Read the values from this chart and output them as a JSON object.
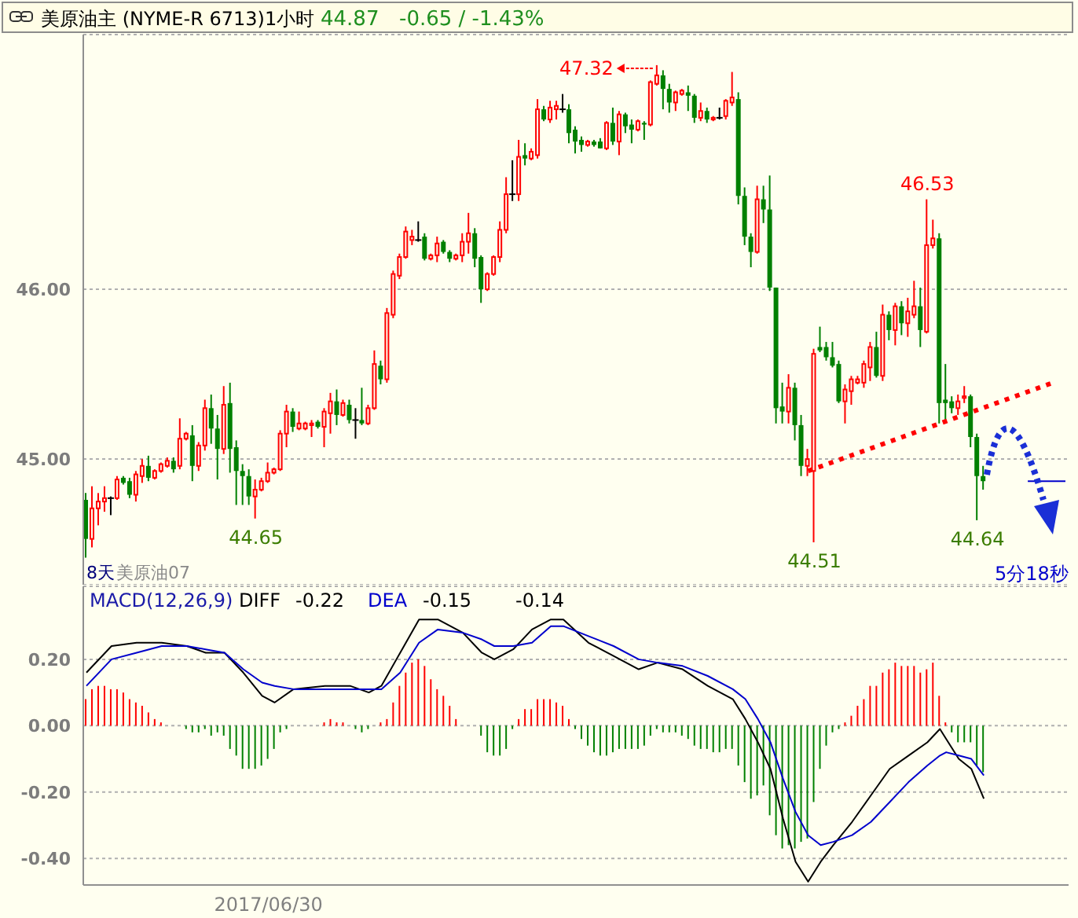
{
  "chart_data": [
    {
      "type": "candlestick",
      "title": "美原油主 (NYME-R 6713)1小时",
      "tick_labels": "y",
      "grid": "y",
      "ylim": [
        44.26,
        47.5
      ],
      "yticks": [
        {
          "value": 45,
          "label": "45.00"
        },
        {
          "value": 46,
          "label": "46.00"
        }
      ],
      "categories": [
        null,
        null,
        null,
        null,
        null,
        null,
        null,
        null,
        null,
        null,
        null,
        null,
        null,
        null,
        null,
        null,
        null,
        null,
        null,
        null,
        null,
        null,
        null,
        null,
        null,
        null,
        null,
        null,
        null,
        null,
        null,
        null,
        null,
        null,
        null,
        null,
        null,
        null,
        null,
        null,
        null,
        null,
        null,
        null,
        null,
        null,
        null,
        null,
        null,
        null,
        null,
        null,
        null,
        null,
        null,
        null,
        null,
        null,
        null,
        null,
        null,
        null,
        null,
        null,
        null,
        null,
        null,
        null,
        null,
        null,
        null,
        null,
        null,
        null,
        null,
        null,
        null,
        null,
        null,
        null,
        null,
        null,
        null,
        null,
        null,
        null,
        null,
        null,
        null,
        null,
        null,
        null,
        null,
        null,
        null,
        null,
        null,
        null,
        null,
        null,
        null,
        null,
        null,
        null,
        null,
        null,
        null,
        null,
        null,
        null,
        null,
        null,
        null,
        null,
        null,
        null,
        null,
        null,
        null,
        null,
        null,
        null,
        null,
        null,
        null,
        null,
        null,
        null,
        null,
        null,
        null,
        null,
        null,
        null,
        null,
        null,
        null,
        null,
        null,
        null,
        null,
        null,
        null,
        null,
        null,
        null,
        null,
        null,
        null,
        null,
        null,
        null,
        null,
        null,
        null,
        null,
        null
      ],
      "ohlc": [
        [
          44.76,
          44.8,
          44.42,
          44.53
        ],
        [
          44.53,
          44.84,
          44.48,
          44.71
        ],
        [
          44.71,
          44.8,
          44.61,
          44.75
        ],
        [
          44.75,
          44.84,
          44.69,
          44.77
        ],
        [
          44.77,
          44.78,
          44.67,
          44.77
        ],
        [
          44.77,
          44.9,
          44.76,
          44.88
        ],
        [
          44.89,
          44.9,
          44.85,
          44.86
        ],
        [
          44.87,
          44.89,
          44.77,
          44.79
        ],
        [
          44.79,
          44.93,
          44.75,
          44.91
        ],
        [
          44.9,
          45.0,
          44.86,
          44.96
        ],
        [
          44.96,
          45.02,
          44.87,
          44.89
        ],
        [
          44.89,
          44.94,
          44.88,
          44.93
        ],
        [
          44.93,
          44.98,
          44.92,
          44.97
        ],
        [
          44.96,
          45.01,
          44.95,
          44.99
        ],
        [
          44.99,
          45.01,
          44.92,
          44.94
        ],
        [
          44.96,
          45.24,
          44.94,
          45.12
        ],
        [
          45.12,
          45.16,
          45.11,
          45.15
        ],
        [
          45.14,
          45.2,
          44.87,
          44.96
        ],
        [
          44.96,
          45.1,
          44.93,
          45.08
        ],
        [
          45.08,
          45.35,
          45.05,
          45.3
        ],
        [
          45.3,
          45.38,
          45.09,
          45.18
        ],
        [
          45.18,
          45.26,
          44.88,
          45.06
        ],
        [
          45.06,
          45.43,
          45.03,
          45.32
        ],
        [
          45.33,
          45.45,
          44.92,
          45.06
        ],
        [
          45.07,
          45.11,
          44.73,
          44.93
        ],
        [
          44.93,
          44.97,
          44.73,
          44.9
        ],
        [
          44.9,
          44.94,
          44.73,
          44.78
        ],
        [
          44.78,
          44.88,
          44.65,
          44.82
        ],
        [
          44.82,
          44.89,
          44.81,
          44.87
        ],
        [
          44.87,
          44.98,
          44.86,
          44.92
        ],
        [
          44.92,
          44.95,
          44.91,
          44.94
        ],
        [
          44.94,
          45.17,
          44.93,
          45.15
        ],
        [
          45.15,
          45.32,
          45.07,
          45.28
        ],
        [
          45.28,
          45.3,
          45.16,
          45.19
        ],
        [
          45.18,
          45.28,
          45.17,
          45.21
        ],
        [
          45.18,
          45.22,
          45.17,
          45.21
        ],
        [
          45.2,
          45.23,
          45.13,
          45.21
        ],
        [
          45.22,
          45.23,
          45.18,
          45.19
        ],
        [
          45.19,
          45.3,
          45.07,
          45.28
        ],
        [
          45.27,
          45.39,
          45.15,
          45.34
        ],
        [
          45.34,
          45.41,
          45.2,
          45.26
        ],
        [
          45.26,
          45.35,
          45.25,
          45.33
        ],
        [
          45.32,
          45.35,
          45.21,
          45.23
        ],
        [
          45.23,
          45.3,
          45.12,
          45.23
        ],
        [
          45.23,
          45.42,
          45.2,
          45.21
        ],
        [
          45.21,
          45.32,
          45.2,
          45.3
        ],
        [
          45.3,
          45.64,
          45.29,
          45.56
        ],
        [
          45.55,
          45.58,
          45.44,
          45.47
        ],
        [
          45.47,
          45.89,
          45.45,
          45.86
        ],
        [
          45.85,
          46.11,
          45.83,
          46.09
        ],
        [
          46.08,
          46.21,
          46.06,
          46.19
        ],
        [
          46.19,
          46.37,
          46.18,
          46.34
        ],
        [
          46.29,
          46.35,
          46.26,
          46.31
        ],
        [
          46.29,
          46.4,
          46.28,
          46.29
        ],
        [
          46.31,
          46.33,
          46.17,
          46.18
        ],
        [
          46.18,
          46.21,
          46.17,
          46.2
        ],
        [
          46.2,
          46.31,
          46.16,
          46.27
        ],
        [
          46.28,
          46.29,
          46.21,
          46.22
        ],
        [
          46.22,
          46.23,
          46.16,
          46.18
        ],
        [
          46.18,
          46.21,
          46.17,
          46.2
        ],
        [
          46.2,
          46.33,
          46.16,
          46.28
        ],
        [
          46.28,
          46.45,
          46.21,
          46.33
        ],
        [
          46.33,
          46.36,
          46.13,
          46.18
        ],
        [
          46.19,
          46.2,
          45.92,
          46.0
        ],
        [
          46.0,
          46.1,
          45.99,
          46.09
        ],
        [
          46.09,
          46.2,
          46.08,
          46.19
        ],
        [
          46.19,
          46.4,
          46.16,
          46.35
        ],
        [
          46.35,
          46.66,
          46.33,
          46.56
        ],
        [
          46.56,
          46.76,
          46.52,
          46.56
        ],
        [
          46.56,
          46.88,
          46.52,
          46.78
        ],
        [
          46.79,
          46.86,
          46.73,
          46.77
        ],
        [
          46.77,
          46.83,
          46.76,
          46.81
        ],
        [
          46.79,
          47.12,
          46.77,
          47.06
        ],
        [
          47.06,
          47.08,
          46.99,
          47.0
        ],
        [
          47.0,
          47.11,
          46.98,
          47.07
        ],
        [
          47.06,
          47.11,
          47.0,
          47.08
        ],
        [
          47.06,
          47.15,
          47.04,
          47.06
        ],
        [
          47.06,
          47.09,
          46.86,
          46.92
        ],
        [
          46.94,
          46.96,
          46.8,
          46.87
        ],
        [
          46.88,
          46.9,
          46.81,
          46.85
        ],
        [
          46.85,
          46.88,
          46.84,
          46.87
        ],
        [
          46.87,
          46.88,
          46.84,
          46.85
        ],
        [
          46.87,
          46.89,
          46.83,
          46.83
        ],
        [
          46.83,
          46.99,
          46.82,
          46.98
        ],
        [
          46.98,
          47.07,
          46.85,
          46.87
        ],
        [
          46.87,
          47.05,
          46.79,
          47.03
        ],
        [
          47.03,
          47.04,
          46.92,
          46.96
        ],
        [
          46.97,
          47.0,
          46.86,
          46.94
        ],
        [
          46.94,
          47.0,
          46.93,
          46.99
        ],
        [
          46.98,
          46.99,
          46.88,
          46.97
        ],
        [
          46.97,
          47.23,
          46.96,
          47.22
        ],
        [
          47.21,
          47.32,
          47.2,
          47.26
        ],
        [
          47.26,
          47.29,
          47.06,
          47.18
        ],
        [
          47.18,
          47.21,
          47.04,
          47.1
        ],
        [
          47.1,
          47.17,
          47.05,
          47.16
        ],
        [
          47.15,
          47.18,
          47.14,
          47.17
        ],
        [
          47.16,
          47.2,
          47.05,
          47.14
        ],
        [
          47.14,
          47.15,
          46.98,
          47.01
        ],
        [
          47.01,
          47.1,
          46.99,
          47.05
        ],
        [
          47.05,
          47.07,
          46.98,
          47.0
        ],
        [
          47.0,
          47.02,
          46.99,
          47.01
        ],
        [
          47.01,
          47.07,
          47.0,
          47.01
        ],
        [
          47.02,
          47.12,
          47.0,
          47.11
        ],
        [
          47.1,
          47.28,
          47.08,
          47.13
        ],
        [
          47.12,
          47.16,
          46.5,
          46.55
        ],
        [
          46.55,
          46.6,
          46.26,
          46.31
        ],
        [
          46.31,
          46.33,
          46.13,
          46.22
        ],
        [
          46.22,
          46.61,
          46.21,
          46.53
        ],
        [
          46.53,
          46.61,
          46.39,
          46.47
        ],
        [
          46.47,
          46.67,
          45.99,
          46.01
        ],
        [
          46.01,
          46.01,
          45.21,
          45.3
        ],
        [
          45.31,
          45.45,
          45.21,
          45.28
        ],
        [
          45.28,
          45.5,
          45.21,
          45.42
        ],
        [
          45.42,
          45.45,
          45.11,
          45.2
        ],
        [
          45.2,
          45.26,
          44.9,
          44.96
        ],
        [
          44.96,
          45.06,
          44.9,
          45.0
        ],
        [
          44.93,
          45.65,
          44.51,
          45.62
        ],
        [
          45.66,
          45.78,
          45.63,
          45.64
        ],
        [
          45.66,
          45.69,
          45.58,
          45.6
        ],
        [
          45.6,
          45.69,
          45.54,
          45.55
        ],
        [
          45.56,
          45.58,
          45.33,
          45.34
        ],
        [
          45.34,
          45.44,
          45.21,
          45.41
        ],
        [
          45.4,
          45.49,
          45.32,
          45.47
        ],
        [
          45.45,
          45.49,
          45.44,
          45.47
        ],
        [
          45.45,
          45.58,
          45.42,
          45.56
        ],
        [
          45.54,
          45.69,
          45.46,
          45.66
        ],
        [
          45.66,
          45.75,
          45.48,
          45.49
        ],
        [
          45.49,
          45.91,
          45.46,
          45.85
        ],
        [
          45.85,
          45.87,
          45.7,
          45.76
        ],
        [
          45.76,
          45.92,
          45.67,
          45.9
        ],
        [
          45.9,
          45.93,
          45.73,
          45.8
        ],
        [
          45.8,
          45.95,
          45.72,
          45.87
        ],
        [
          45.85,
          46.05,
          45.83,
          45.9
        ],
        [
          45.9,
          46.01,
          45.66,
          45.76
        ],
        [
          45.75,
          46.53,
          45.74,
          46.26
        ],
        [
          46.26,
          46.41,
          46.24,
          46.3
        ],
        [
          46.3,
          46.33,
          45.21,
          45.33
        ],
        [
          45.35,
          45.56,
          45.21,
          45.33
        ],
        [
          45.34,
          45.37,
          45.27,
          45.3
        ],
        [
          45.3,
          45.38,
          45.26,
          45.34
        ],
        [
          45.36,
          45.43,
          45.33,
          45.37
        ],
        [
          45.37,
          45.38,
          45.07,
          45.13
        ],
        [
          45.13,
          45.15,
          44.64,
          44.9
        ],
        [
          44.9,
          44.96,
          44.82,
          44.87
        ],
        null,
        null,
        null,
        null,
        null,
        null,
        null,
        null,
        null,
        null,
        null,
        null,
        null
      ],
      "series": [
        {
          "type": "line",
          "color": "#ff0000",
          "line_style": "dotted",
          "values": [
            null,
            null,
            null,
            null,
            null,
            null,
            null,
            null,
            null,
            null,
            null,
            null,
            null,
            null,
            null,
            null,
            null,
            null,
            null,
            null,
            null,
            null,
            null,
            null,
            null,
            null,
            null,
            null,
            null,
            null,
            null,
            null,
            null,
            null,
            null,
            null,
            null,
            null,
            null,
            null,
            null,
            null,
            null,
            null,
            null,
            null,
            null,
            null,
            null,
            null,
            null,
            null,
            null,
            null,
            null,
            null,
            null,
            null,
            null,
            null,
            null,
            null,
            null,
            null,
            null,
            null,
            null,
            null,
            null,
            null,
            null,
            null,
            null,
            null,
            null,
            null,
            null,
            null,
            null,
            null,
            null,
            null,
            null,
            null,
            null,
            null,
            null,
            null,
            null,
            null,
            null,
            null,
            null,
            null,
            null,
            null,
            null,
            null,
            null,
            null,
            null,
            null,
            null,
            null,
            null,
            null,
            null,
            null,
            null,
            null,
            null,
            null,
            null,
            null,
            null,
            44.93,
            null,
            null,
            null,
            null,
            null,
            null,
            null,
            null,
            null,
            null,
            null,
            null,
            null,
            null,
            null,
            null,
            null,
            null,
            null,
            null,
            null,
            null,
            null,
            null,
            null,
            null,
            null,
            null,
            null,
            null,
            null,
            null,
            null,
            null,
            null,
            null,
            null,
            null,
            45.45,
            null,
            null
          ]
        },
        {
          "type": "line",
          "color": "#0000cc",
          "line_style": "solid",
          "values": [
            null,
            null,
            null,
            null,
            null,
            null,
            null,
            null,
            null,
            null,
            null,
            null,
            null,
            null,
            null,
            null,
            null,
            null,
            null,
            null,
            null,
            null,
            null,
            null,
            null,
            null,
            null,
            null,
            null,
            null,
            null,
            null,
            null,
            null,
            null,
            null,
            null,
            null,
            null,
            null,
            null,
            null,
            null,
            null,
            null,
            null,
            null,
            null,
            null,
            null,
            null,
            null,
            null,
            null,
            null,
            null,
            null,
            null,
            null,
            null,
            null,
            null,
            null,
            null,
            null,
            null,
            null,
            null,
            null,
            null,
            null,
            null,
            null,
            null,
            null,
            null,
            null,
            null,
            null,
            null,
            null,
            null,
            null,
            null,
            null,
            null,
            null,
            null,
            null,
            null,
            null,
            null,
            null,
            null,
            null,
            null,
            null,
            null,
            null,
            null,
            null,
            null,
            null,
            null,
            null,
            null,
            null,
            null,
            null,
            null,
            null,
            null,
            null,
            null,
            null,
            null,
            null,
            null,
            null,
            null,
            null,
            null,
            null,
            null,
            null,
            null,
            null,
            null,
            null,
            null,
            null,
            null,
            null,
            null,
            null,
            null,
            null,
            null,
            null,
            null,
            null,
            null,
            null,
            null,
            null,
            null,
            null,
            null,
            null,
            null,
            44.87,
            44.87,
            44.87,
            44.87,
            44.87,
            44.87,
            44.87
          ]
        }
      ],
      "annotations": [
        "44.87",
        "-0.65 / -1.43%",
        "47.32",
        {
          "text": "46.53",
          "y": 46.53
        },
        {
          "text": "44.65",
          "y": 44.65
        },
        {
          "text": "44.51",
          "y": 44.51
        },
        {
          "text": "44.64",
          "y": 44.64
        },
        "8天",
        "美原油07",
        "5分18秒"
      ]
    },
    {
      "type": "bar",
      "title": "MACD(12,26,9)",
      "legend": "top left",
      "grid": "y",
      "stacked": true,
      "ylim": [
        -0.48,
        0.42
      ],
      "yticks": [
        {
          "value": 0.2,
          "label": "0.20"
        },
        {
          "value": 0,
          "label": "0.00"
        },
        {
          "value": -0.2,
          "label": "-0.20"
        },
        {
          "value": -0.4,
          "label": "-0.40"
        }
      ],
      "categories": [
        null,
        null,
        null,
        null,
        null,
        null,
        null,
        null,
        null,
        null,
        null,
        null,
        null,
        null,
        null,
        null,
        null,
        null,
        null,
        null,
        null,
        null,
        null,
        null,
        null,
        null,
        null,
        null,
        null,
        "2017/06/30",
        null,
        null,
        null,
        null,
        null,
        null,
        null,
        null,
        null,
        null,
        null,
        null,
        null,
        null,
        null,
        null,
        null,
        null,
        null,
        null,
        null,
        null,
        null,
        null,
        null,
        null,
        null,
        null,
        null,
        null,
        null,
        null,
        null,
        null,
        null,
        null,
        null,
        null,
        null,
        null,
        null,
        null,
        null,
        null,
        null,
        null,
        null,
        null,
        null,
        null,
        null,
        null,
        null,
        null,
        null,
        null,
        null,
        null,
        null,
        null,
        null,
        null,
        null,
        null,
        null,
        null,
        null,
        null,
        null,
        null,
        null,
        null,
        null,
        null,
        null,
        null,
        null,
        null,
        null,
        null,
        null,
        null,
        null,
        null,
        null,
        null,
        null,
        null,
        null,
        null,
        null,
        null,
        null,
        null,
        null,
        null,
        null,
        null,
        null,
        null,
        null,
        null,
        null,
        null,
        null,
        null,
        null,
        null,
        null,
        null,
        null,
        null,
        null,
        null,
        null,
        null,
        null,
        null,
        null,
        null,
        null,
        null,
        null,
        null,
        null,
        null,
        null
      ],
      "series": [
        {
          "type": "bar",
          "color": "#ff0000",
          "values": [
            0.08,
            0.11,
            0.12,
            0.12,
            0.11,
            0.11,
            0.1,
            0.08,
            0.07,
            0.06,
            0.04,
            0.02,
            0.01,
            0,
            0,
            0,
            null,
            null,
            null,
            null,
            null,
            null,
            null,
            null,
            null,
            null,
            null,
            null,
            null,
            null,
            null,
            null,
            null,
            0,
            0,
            0,
            0,
            0,
            0.01,
            0.02,
            0.01,
            0.01,
            0,
            null,
            null,
            null,
            0,
            0.01,
            0.02,
            0.07,
            0.12,
            0.16,
            0.19,
            0.2,
            0.18,
            0.14,
            0.11,
            0.09,
            0.06,
            0.02,
            0,
            0,
            0,
            null,
            null,
            null,
            null,
            null,
            null,
            0.02,
            0.05,
            0.05,
            0.08,
            0.08,
            0.08,
            0.07,
            0.06,
            0.02,
            null,
            null,
            null,
            null,
            null,
            null,
            null,
            null,
            null,
            null,
            null,
            null,
            null,
            null,
            null,
            null,
            null,
            null,
            null,
            null,
            null,
            null,
            null,
            null,
            null,
            null,
            null,
            null,
            null,
            null,
            null,
            null,
            null,
            null,
            null,
            null,
            null,
            null,
            null,
            null,
            null,
            null,
            null,
            0.01,
            0.03,
            0.06,
            0.08,
            0.12,
            0.12,
            0.16,
            0.17,
            0.19,
            0.18,
            0.18,
            0.18,
            0.16,
            0.17,
            0.19,
            0.09,
            0.01,
            null,
            null,
            null,
            null,
            null,
            null,
            null,
            null,
            null,
            null,
            null,
            null,
            null,
            null,
            null,
            null,
            null,
            null,
            null
          ]
        },
        {
          "type": "bar",
          "color": "#008000",
          "values": [
            null,
            null,
            null,
            null,
            null,
            null,
            null,
            null,
            null,
            null,
            null,
            null,
            null,
            null,
            null,
            null,
            -0.01,
            -0.02,
            -0.02,
            -0.01,
            -0.03,
            -0.02,
            -0.03,
            -0.07,
            -0.09,
            -0.13,
            -0.13,
            -0.13,
            -0.12,
            -0.1,
            -0.07,
            -0.02,
            -0.01,
            null,
            null,
            null,
            null,
            null,
            null,
            null,
            null,
            null,
            null,
            -0.01,
            -0.02,
            -0.01,
            null,
            null,
            null,
            null,
            null,
            null,
            null,
            null,
            null,
            null,
            null,
            null,
            null,
            null,
            null,
            null,
            null,
            -0.03,
            -0.08,
            -0.09,
            -0.09,
            -0.07,
            -0.01,
            null,
            null,
            null,
            null,
            null,
            null,
            null,
            null,
            null,
            -0.01,
            -0.04,
            -0.06,
            -0.08,
            -0.09,
            -0.09,
            -0.08,
            -0.07,
            -0.07,
            -0.07,
            -0.07,
            -0.06,
            -0.03,
            -0.01,
            -0.02,
            -0.02,
            -0.02,
            -0.03,
            -0.04,
            -0.06,
            -0.07,
            -0.07,
            -0.08,
            -0.08,
            -0.07,
            -0.07,
            -0.12,
            -0.17,
            -0.22,
            -0.21,
            -0.18,
            -0.27,
            -0.33,
            -0.37,
            -0.36,
            -0.37,
            -0.35,
            -0.34,
            -0.23,
            -0.13,
            -0.06,
            -0.02,
            -0.01,
            null,
            null,
            null,
            null,
            null,
            null,
            null,
            null,
            null,
            null,
            null,
            null,
            null,
            null,
            null,
            null,
            null,
            -0.02,
            -0.05,
            -0.05,
            -0.05,
            -0.12,
            -0.14,
            null,
            null,
            null,
            null,
            null,
            null,
            null,
            null,
            null,
            null,
            null,
            null,
            null
          ]
        },
        {
          "type": "line",
          "name": "DIFF",
          "color": "#000000",
          "values": [
            0.16,
            null,
            null,
            null,
            0.24,
            null,
            null,
            null,
            0.25,
            null,
            null,
            null,
            0.25,
            null,
            null,
            null,
            0.24,
            null,
            null,
            0.22,
            null,
            null,
            0.22,
            null,
            null,
            0.16,
            null,
            null,
            0.09,
            null,
            0.07,
            null,
            null,
            0.11,
            null,
            null,
            null,
            null,
            0.12,
            null,
            null,
            null,
            0.12,
            null,
            null,
            0.1,
            null,
            0.12,
            null,
            null,
            0.22,
            null,
            null,
            0.32,
            null,
            null,
            0.32,
            null,
            null,
            null,
            0.28,
            null,
            null,
            0.22,
            null,
            0.2,
            null,
            null,
            0.23,
            null,
            null,
            0.29,
            null,
            null,
            0.32,
            null,
            0.32,
            null,
            null,
            null,
            0.25,
            null,
            null,
            null,
            0.21,
            null,
            null,
            null,
            0.17,
            null,
            null,
            0.19,
            null,
            null,
            null,
            0.17,
            null,
            null,
            null,
            0.12,
            null,
            null,
            null,
            0.08,
            null,
            0.02,
            null,
            -0.05,
            null,
            -0.13,
            null,
            -0.28,
            null,
            -0.41,
            null,
            -0.47,
            null,
            -0.41,
            null,
            -0.36,
            null,
            null,
            -0.29,
            null,
            null,
            -0.21,
            null,
            null,
            -0.13,
            null,
            null,
            -0.09,
            null,
            null,
            -0.05,
            null,
            -0.01,
            -0.04,
            null,
            -0.1,
            null,
            -0.13,
            null,
            -0.22,
            null,
            null,
            null,
            null,
            null,
            null,
            null,
            null,
            null,
            null,
            null,
            null,
            null
          ]
        },
        {
          "type": "line",
          "name": "DEA",
          "color": "#0000cc",
          "values": [
            0.12,
            null,
            null,
            null,
            0.2,
            null,
            null,
            null,
            0.22,
            null,
            null,
            null,
            0.24,
            null,
            null,
            null,
            0.24,
            null,
            null,
            0.23,
            null,
            null,
            0.22,
            null,
            null,
            0.17,
            null,
            null,
            0.13,
            null,
            0.12,
            null,
            null,
            0.11,
            null,
            null,
            null,
            null,
            0.11,
            null,
            null,
            null,
            0.11,
            null,
            null,
            0.11,
            null,
            0.11,
            null,
            null,
            0.16,
            null,
            null,
            0.25,
            null,
            null,
            0.29,
            null,
            null,
            null,
            0.28,
            null,
            null,
            0.26,
            null,
            0.24,
            null,
            null,
            0.24,
            null,
            null,
            0.25,
            null,
            null,
            0.3,
            null,
            0.3,
            null,
            null,
            null,
            0.27,
            null,
            null,
            null,
            0.24,
            null,
            null,
            null,
            0.2,
            null,
            null,
            0.19,
            null,
            null,
            null,
            0.18,
            null,
            null,
            null,
            0.15,
            null,
            null,
            null,
            0.11,
            null,
            0.08,
            null,
            0.02,
            null,
            -0.05,
            null,
            -0.16,
            null,
            -0.26,
            null,
            -0.33,
            null,
            -0.36,
            null,
            -0.35,
            null,
            null,
            -0.33,
            null,
            null,
            -0.29,
            null,
            null,
            -0.23,
            null,
            null,
            -0.17,
            null,
            null,
            -0.12,
            null,
            -0.09,
            -0.08,
            null,
            -0.09,
            null,
            -0.1,
            null,
            -0.15,
            null,
            null,
            null,
            null,
            null,
            null,
            null,
            null,
            null,
            null,
            null,
            null,
            null
          ]
        }
      ],
      "annotations": [
        "-0.22",
        "-0.15",
        "-0.14"
      ]
    }
  ]
}
